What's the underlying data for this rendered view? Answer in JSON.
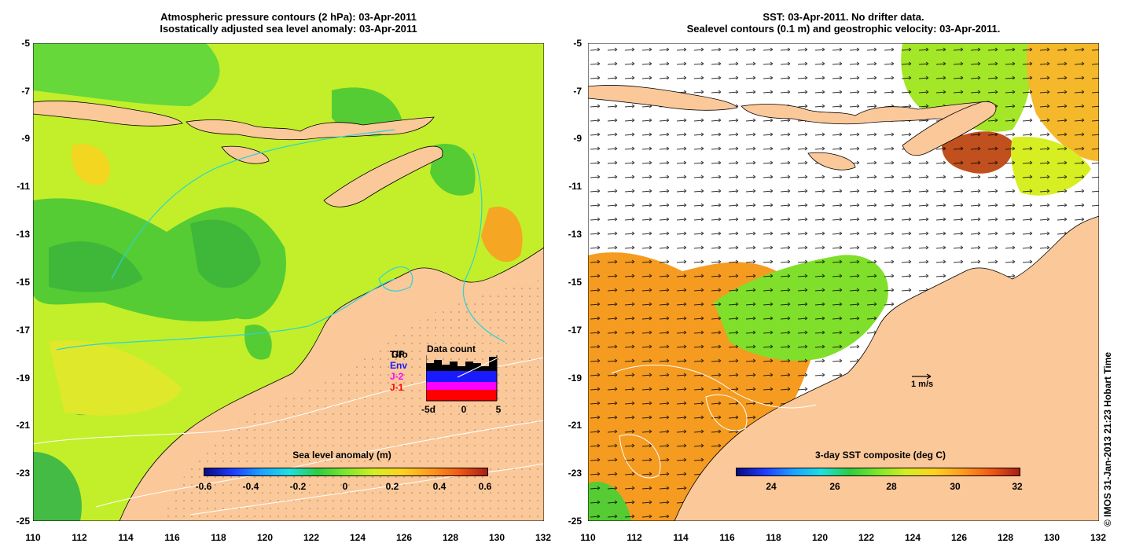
{
  "left_panel": {
    "title_line1": "Atmospheric pressure contours (2 hPa): 03-Apr-2011",
    "title_line2": "Isostatically adjusted sea level anomaly: 03-Apr-2011",
    "lat_ticks": [
      "-5",
      "-7",
      "-9",
      "-11",
      "-13",
      "-15",
      "-17",
      "-19",
      "-21",
      "-23",
      "-25"
    ],
    "lon_ticks": [
      "110",
      "112",
      "114",
      "116",
      "118",
      "120",
      "122",
      "124",
      "126",
      "128",
      "130",
      "132"
    ],
    "colorbar": {
      "label": "Sea level anomaly (m)",
      "ticks": [
        "-0.6",
        "-0.4",
        "-0.2",
        "0",
        "0.2",
        "0.4",
        "0.6"
      ]
    },
    "data_count": {
      "title": "Data count",
      "legend": [
        {
          "label": "T/P",
          "color": "#000000"
        },
        {
          "label": "Gfo",
          "color": "#000000"
        },
        {
          "label": "Env",
          "color": "#1a1aff"
        },
        {
          "label": "J-2",
          "color": "#ff00ff"
        },
        {
          "label": "J-1",
          "color": "#ff0000"
        }
      ],
      "axis_labels": [
        "-5d",
        "0",
        "5"
      ]
    }
  },
  "right_panel": {
    "title_line1": "SST: 03-Apr-2011. No drifter data.",
    "title_line2": "Sealevel contours (0.1 m) and geostrophic velocity: 03-Apr-2011.",
    "lat_ticks": [
      "-5",
      "-7",
      "-9",
      "-11",
      "-13",
      "-15",
      "-17",
      "-19",
      "-21",
      "-23",
      "-25"
    ],
    "lon_ticks": [
      "110",
      "112",
      "114",
      "116",
      "118",
      "120",
      "122",
      "124",
      "126",
      "128",
      "130",
      "132"
    ],
    "scale_label": "1 m/s",
    "colorbar": {
      "label": "3-day SST composite (deg C)",
      "ticks": [
        "24",
        "26",
        "28",
        "30",
        "32"
      ]
    }
  },
  "credit": "© IMOS 31-Jan-2013 21:23 Hobart Time",
  "colors": {
    "land": "#fbc89a",
    "green": "#5cd42e",
    "yellow_green": "#b8ee22",
    "orange": "#f59b20"
  }
}
